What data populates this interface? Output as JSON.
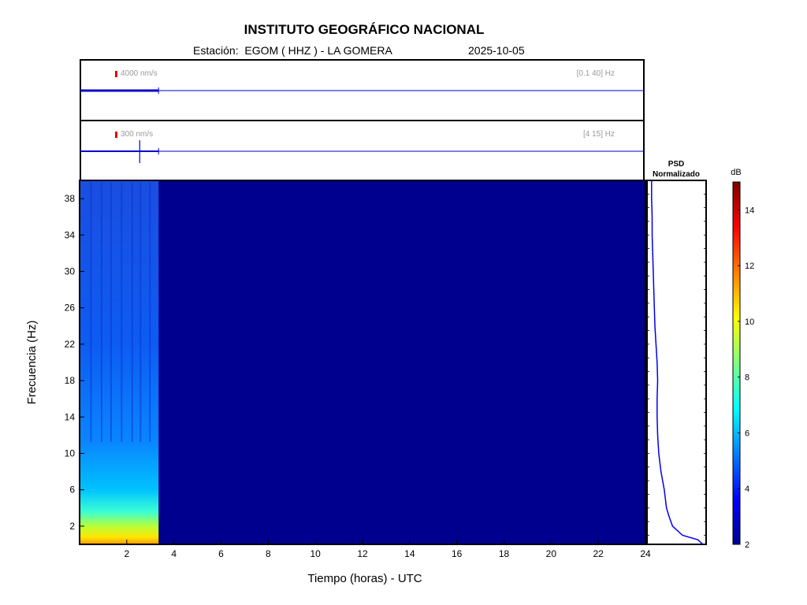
{
  "header": {
    "title": "INSTITUTO GEOGRÁFICO NACIONAL",
    "station_line": "Estación:  EGOM ( HHZ ) - LA GOMERA",
    "date": "2025-10-05"
  },
  "traces": [
    {
      "scale": "4000 nm/s",
      "band": "[0.1 40] Hz",
      "data_end_hours": 3.35,
      "color": "#0000cc"
    },
    {
      "scale": "300 nm/s",
      "band": "[4 15] Hz",
      "data_end_hours": 3.35,
      "event_hours": 2.55,
      "color": "#0000cc"
    }
  ],
  "chart_data": {
    "type": "heatmap",
    "xlabel": "Tiempo (horas) - UTC",
    "ylabel": "Frecuencia  (Hz)",
    "xlim": [
      0,
      24
    ],
    "ylim": [
      0,
      40
    ],
    "xticks": [
      2,
      4,
      6,
      8,
      10,
      12,
      14,
      16,
      18,
      20,
      22,
      24
    ],
    "yticks": [
      2,
      6,
      10,
      14,
      18,
      22,
      26,
      30,
      34,
      38
    ],
    "data_end_hours": 3.35,
    "background_color": "#00008f",
    "psd": {
      "title": "PSD",
      "subtitle": "Normalizado",
      "color": "#0000ee",
      "frequencies_hz": [
        0,
        0.5,
        1,
        2,
        3,
        4,
        5,
        6,
        7,
        8,
        9,
        10,
        11,
        12,
        14,
        16,
        18,
        20,
        22,
        24,
        26,
        28,
        30,
        32,
        34,
        36,
        38,
        40
      ],
      "relative_power": [
        0.97,
        0.88,
        0.6,
        0.42,
        0.36,
        0.31,
        0.29,
        0.27,
        0.24,
        0.21,
        0.19,
        0.17,
        0.16,
        0.15,
        0.14,
        0.14,
        0.15,
        0.14,
        0.12,
        0.1,
        0.09,
        0.08,
        0.07,
        0.06,
        0.05,
        0.05,
        0.04,
        0.04
      ]
    },
    "colorbar": {
      "unit": "dB",
      "min": 2,
      "max": 15,
      "ticks": [
        2,
        4,
        6,
        8,
        10,
        12,
        14
      ]
    }
  }
}
